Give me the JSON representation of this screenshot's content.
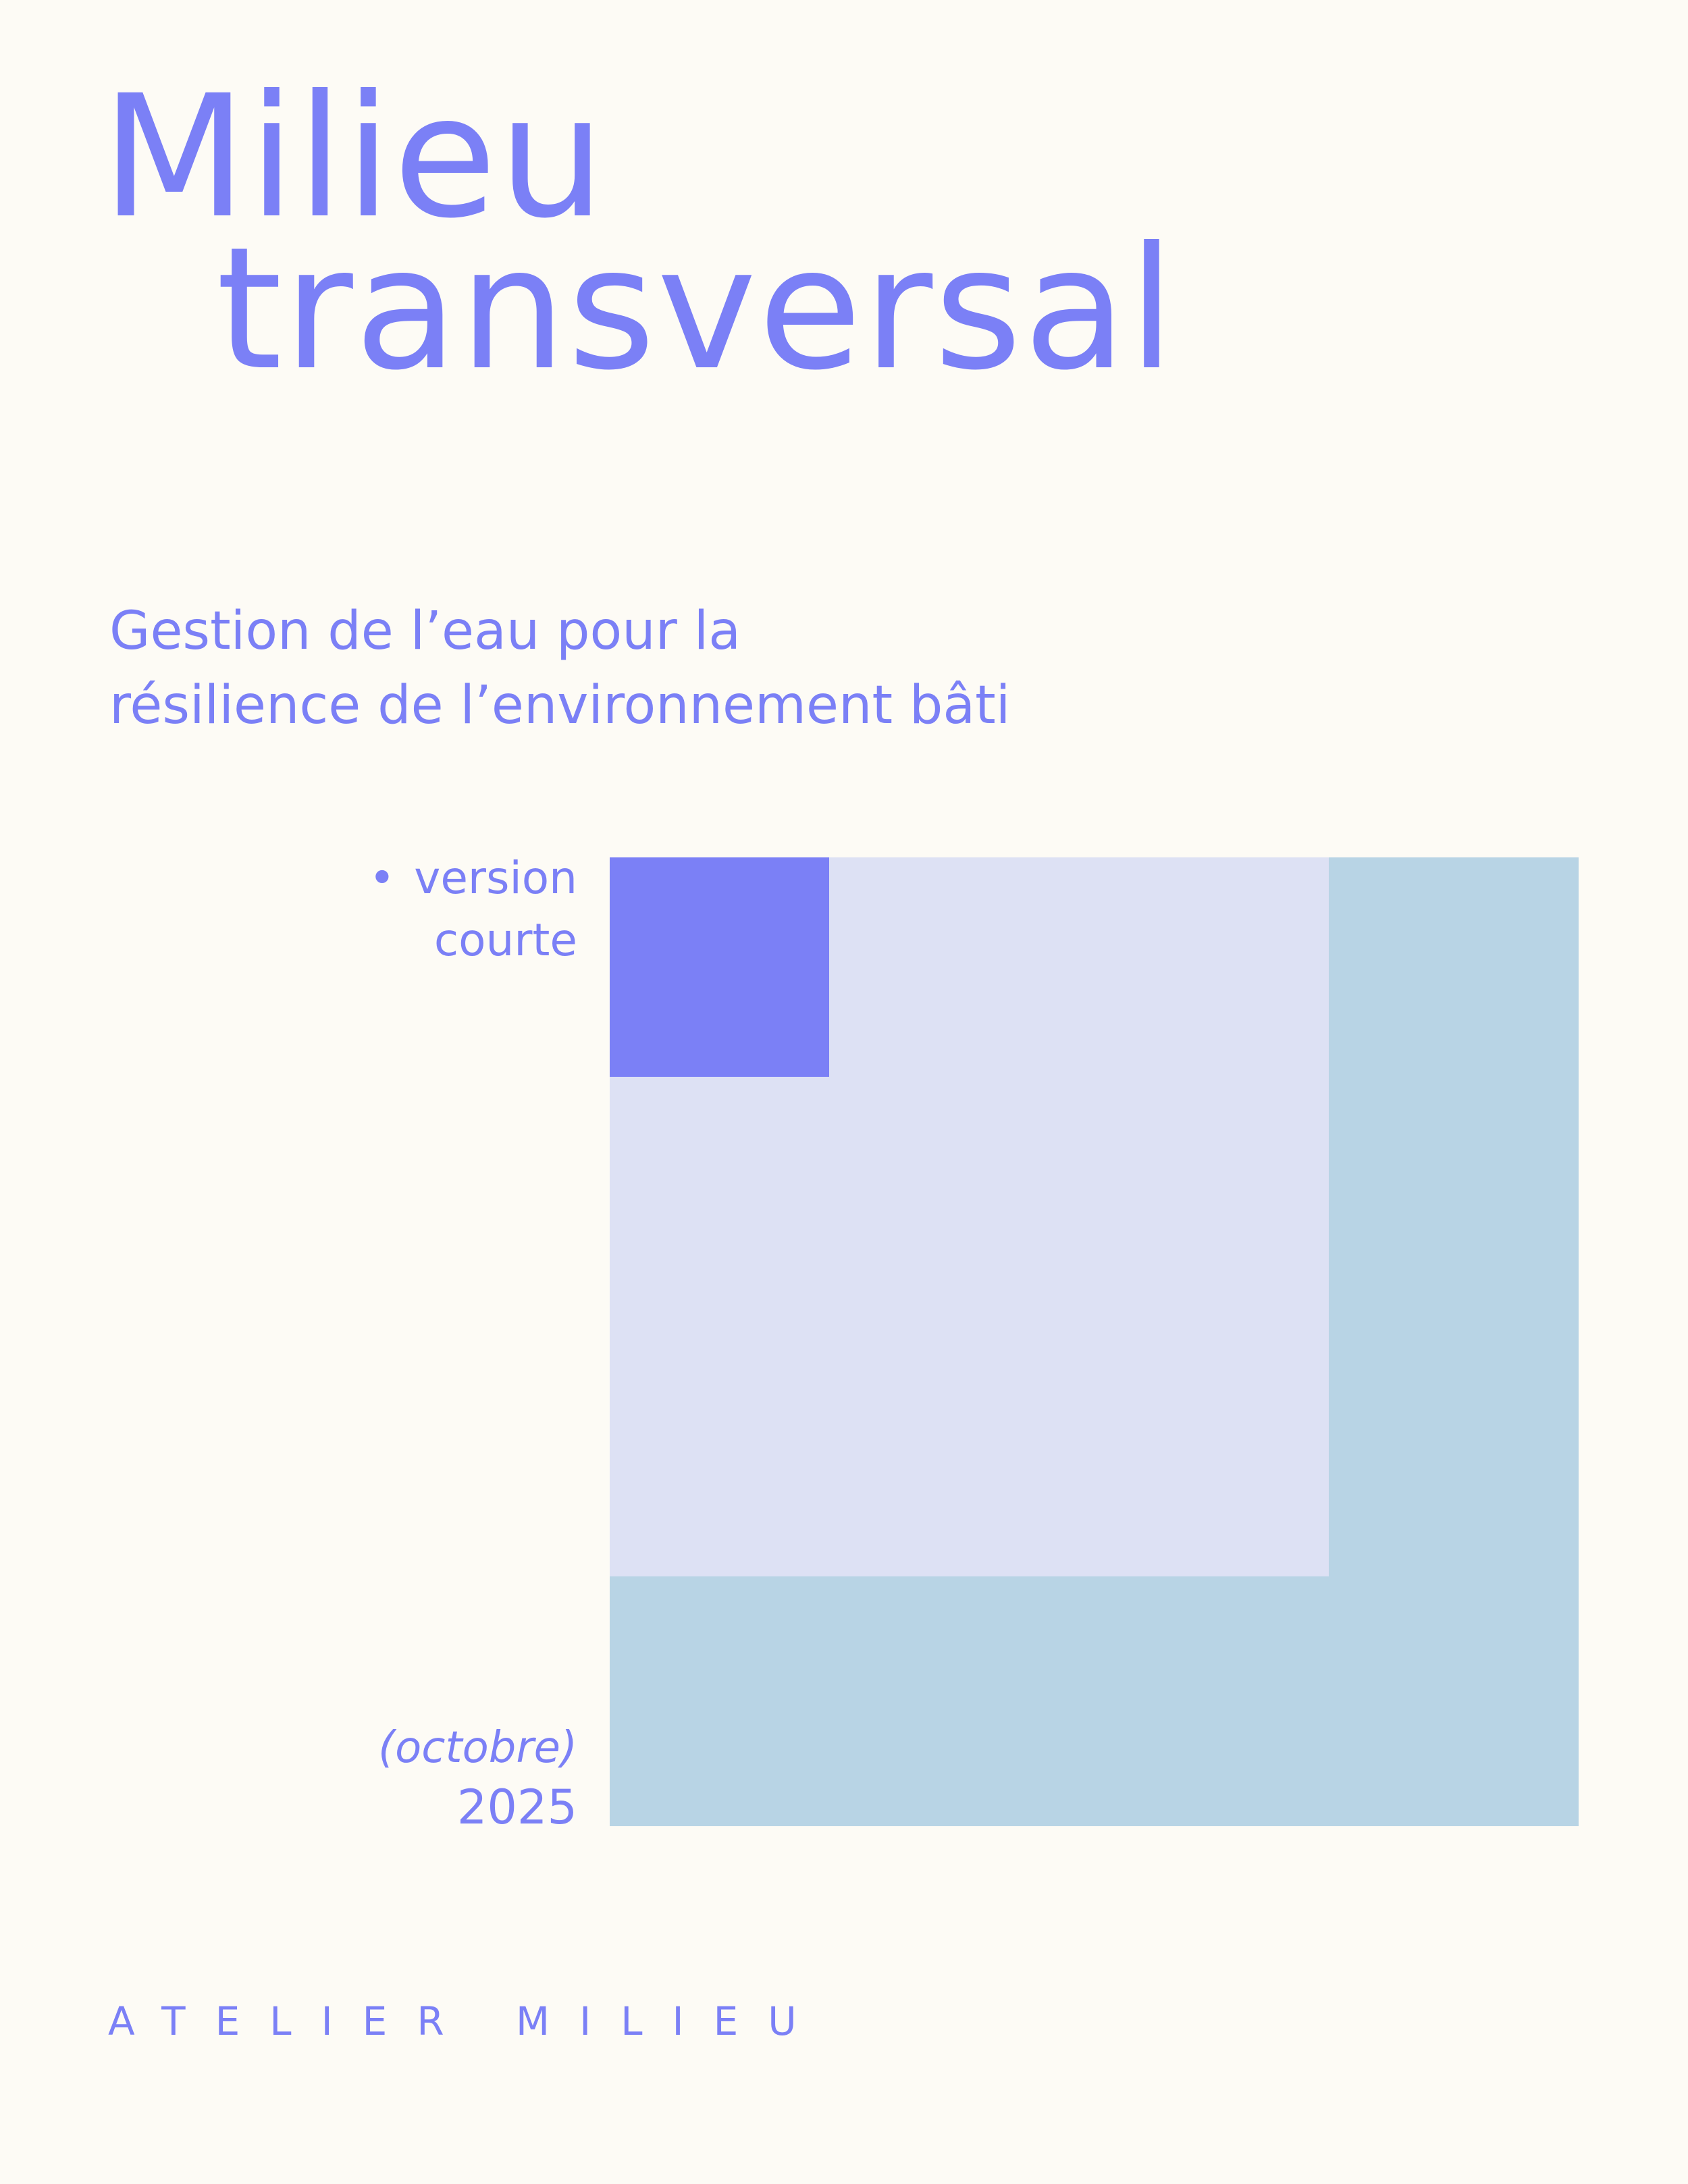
{
  "cover": {
    "title_line1": "Milieu",
    "title_line2": "transversal",
    "subtitle_line1": "Gestion de l’eau pour la",
    "subtitle_line2": "résilience de l’environnement bâti",
    "version_bullet": "•",
    "version_line1": "version",
    "version_line2": "courte",
    "date_month": "(octobre)",
    "date_year": "2025",
    "publisher": "ATELIER MILIEU"
  },
  "colors": {
    "background": "#fdfbf5",
    "accent": "#7b80f6",
    "square_outer": "#b8d4e5",
    "square_middle": "#dde1f4",
    "square_inner": "#7b80f6"
  }
}
